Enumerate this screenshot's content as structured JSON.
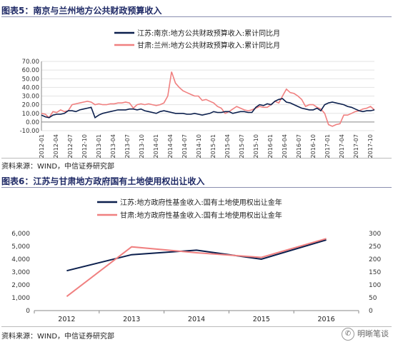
{
  "figures": [
    {
      "title": "图表5：南京与兰州地方公共财政预算收入",
      "source": "资料来源：WIND，中信证券研究部"
    },
    {
      "title": "图表6：江苏与甘肃地方政府国有土地使用权出让收入",
      "source": "资料来源：WIND，中信证券研究部"
    }
  ],
  "watermark": "明晰笔谈",
  "chart_data": [
    {
      "type": "line",
      "title": "",
      "xlabel": "",
      "ylabel": "",
      "ylim": [
        -10,
        70
      ],
      "yticks": [
        "70.00",
        "60.00",
        "50.00",
        "40.00",
        "30.00",
        "20.00",
        "10.00",
        "0.00",
        "-10.00"
      ],
      "xtick_labels": [
        "2012-01",
        "2012-04",
        "2012-07",
        "2012-10",
        "2013-01",
        "2013-04",
        "2013-07",
        "2013-10",
        "2014-01",
        "2014-04",
        "2014-07",
        "2014-10",
        "2015-01",
        "2015-04",
        "2015-07",
        "2015-10",
        "2016-01",
        "2016-04",
        "2016-07",
        "2016-10",
        "2017-01",
        "2017-04",
        "2017-07",
        "2017-10"
      ],
      "legend_position": "top-right",
      "series": [
        {
          "name": "江苏:南京:地方公共财政预算收入:累计同比月",
          "color": "#0b1f4d",
          "values": [
            8,
            6,
            5,
            8,
            9,
            9,
            10,
            13,
            13,
            12,
            14,
            15,
            16,
            17,
            5,
            8,
            10,
            11,
            12,
            13,
            14,
            14,
            14,
            15,
            15,
            14,
            15,
            13,
            12,
            11,
            10,
            12,
            13,
            12,
            11,
            10,
            10,
            10,
            9,
            9,
            10,
            9,
            8,
            9,
            10,
            12,
            11,
            11,
            12,
            12,
            10,
            11,
            12,
            12,
            11,
            11,
            17,
            20,
            19,
            21,
            20,
            24,
            26,
            27,
            23,
            22,
            20,
            18,
            16,
            15,
            14,
            14,
            16,
            13,
            20,
            22,
            23,
            22,
            21,
            20,
            18,
            17,
            15,
            13,
            12,
            13,
            13,
            14
          ]
        },
        {
          "name": "甘肃:兰州:地方公共财政预算收入:累计同比月",
          "color": "#f08080",
          "values": [
            10,
            9,
            5,
            12,
            11,
            14,
            12,
            13,
            20,
            21,
            22,
            23,
            24,
            23,
            20,
            21,
            20,
            20,
            21,
            21,
            22,
            22,
            23,
            22,
            16,
            20,
            21,
            20,
            21,
            20,
            19,
            20,
            22,
            30,
            58,
            45,
            40,
            36,
            34,
            32,
            30,
            30,
            25,
            26,
            24,
            22,
            18,
            16,
            10,
            12,
            15,
            18,
            16,
            14,
            13,
            14,
            16,
            18,
            17,
            17,
            20,
            24,
            22,
            30,
            38,
            34,
            33,
            30,
            26,
            18,
            20,
            20,
            17,
            15,
            10,
            -3,
            -5,
            -3,
            -2,
            8,
            8,
            10,
            12,
            13,
            15,
            16,
            18,
            14
          ]
        }
      ]
    },
    {
      "type": "line",
      "title": "",
      "xlabel": "",
      "ylabel": "",
      "categories": [
        "2012",
        "2013",
        "2014",
        "2015",
        "2016"
      ],
      "ylim_left": [
        0,
        6000
      ],
      "ylim_right": [
        0,
        300
      ],
      "yticks_left": [
        "6,000",
        "5,000",
        "4,000",
        "3,000",
        "2,000",
        "1,000",
        "0"
      ],
      "yticks_right": [
        "300",
        "250",
        "200",
        "150",
        "100",
        "50",
        "0"
      ],
      "legend_position": "top-right",
      "series": [
        {
          "name": "江苏:地方政府性基金收入:国有土地使用权出让金年",
          "color": "#0b1f4d",
          "axis": "left",
          "values": [
            3100,
            4350,
            4700,
            4000,
            5500
          ]
        },
        {
          "name": "甘肃:地方政府性基金收入:国有土地使用权出让金年",
          "color": "#f08080",
          "axis": "right",
          "values": [
            55,
            248,
            225,
            207,
            280
          ]
        }
      ]
    }
  ]
}
